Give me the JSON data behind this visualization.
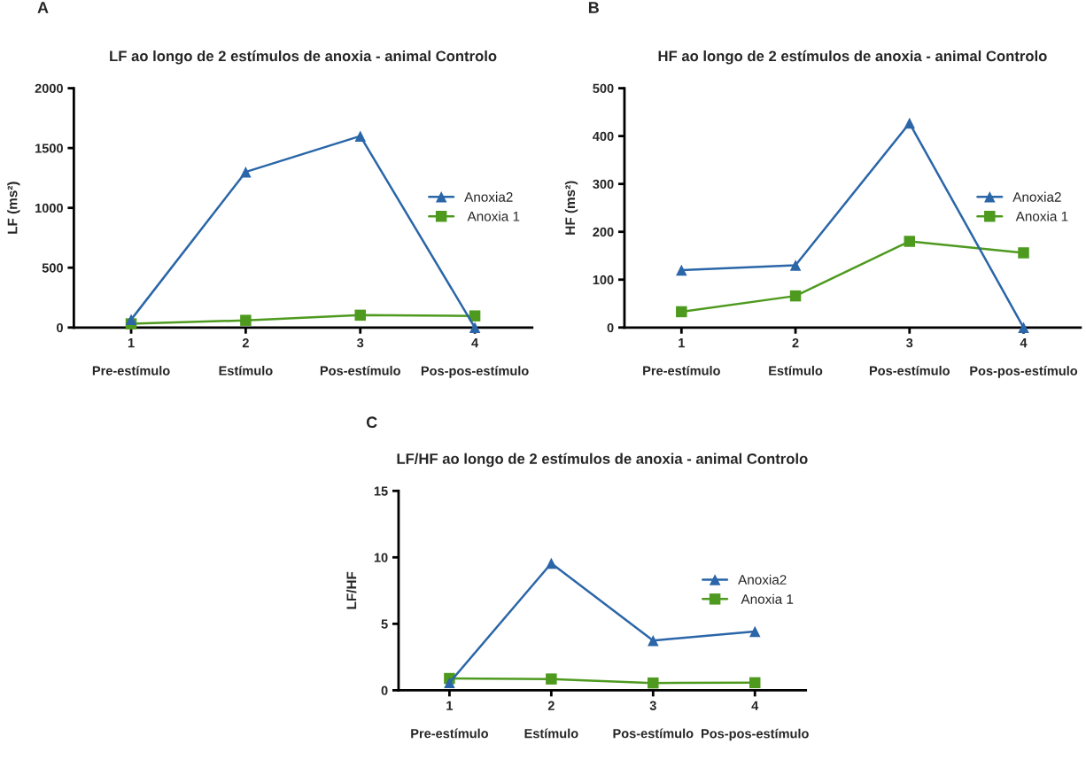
{
  "chart_data": [
    {
      "type": "line",
      "title": "LF ao longo de 2 estímulos de anoxia - animal Controlo",
      "ylabel": "LF (ms²)",
      "annotations": [
        "A"
      ],
      "categories": [
        "1\n\nPre-estímulo",
        "2\n\nEstímulo",
        "3\n\nPos-estímulo",
        "4\n\nPos-pos-estímulo"
      ],
      "ylim": [
        0,
        2000
      ],
      "yticks": [
        0,
        500,
        1000,
        1500,
        2000
      ],
      "grid": false,
      "legend": "right",
      "series": [
        {
          "name": "Anoxia2",
          "color": "#2a66a8",
          "marker": "triangle",
          "values": [
            66,
            1300,
            1600,
            0
          ]
        },
        {
          "name": " Anoxia 1",
          "color": "#4e9a1f",
          "marker": "square",
          "values": [
            31,
            60,
            103,
            97
          ]
        }
      ]
    },
    {
      "type": "line",
      "title": "HF ao longo de 2 estímulos de anoxia - animal Controlo",
      "ylabel": "HF (ms²)",
      "annotations": [
        "B"
      ],
      "categories": [
        "1\n\nPre-estímulo",
        "2\n\nEstímulo",
        "3\n\nPos-estímulo",
        "4\n\nPos-pos-estímulo"
      ],
      "ylim": [
        0,
        500
      ],
      "yticks": [
        0,
        100,
        200,
        300,
        400,
        500
      ],
      "grid": false,
      "legend": "right",
      "series": [
        {
          "name": "Anoxia2",
          "color": "#2a66a8",
          "marker": "triangle",
          "values": [
            120,
            130,
            427,
            0
          ]
        },
        {
          "name": " Anoxia 1",
          "color": "#4e9a1f",
          "marker": "square",
          "values": [
            33,
            66,
            180,
            156
          ]
        }
      ]
    },
    {
      "type": "line",
      "title": "LF/HF ao longo de 2 estímulos de anoxia - animal Controlo",
      "ylabel": "LF/HF",
      "annotations": [
        "C"
      ],
      "categories": [
        "1\n\nPre-estímulo",
        "2\n\nEstímulo",
        "3\n\nPos-estímulo",
        "4\n\nPos-pos-estímulo"
      ],
      "ylim": [
        0,
        15
      ],
      "yticks": [
        0,
        5,
        10,
        15
      ],
      "grid": false,
      "legend": "right",
      "series": [
        {
          "name": "Anoxia2",
          "color": "#2a66a8",
          "marker": "triangle",
          "values": [
            0.57,
            9.55,
            3.74,
            4.43
          ]
        },
        {
          "name": " Anoxia 1",
          "color": "#4e9a1f",
          "marker": "square",
          "values": [
            0.89,
            0.85,
            0.55,
            0.57
          ]
        }
      ]
    }
  ]
}
